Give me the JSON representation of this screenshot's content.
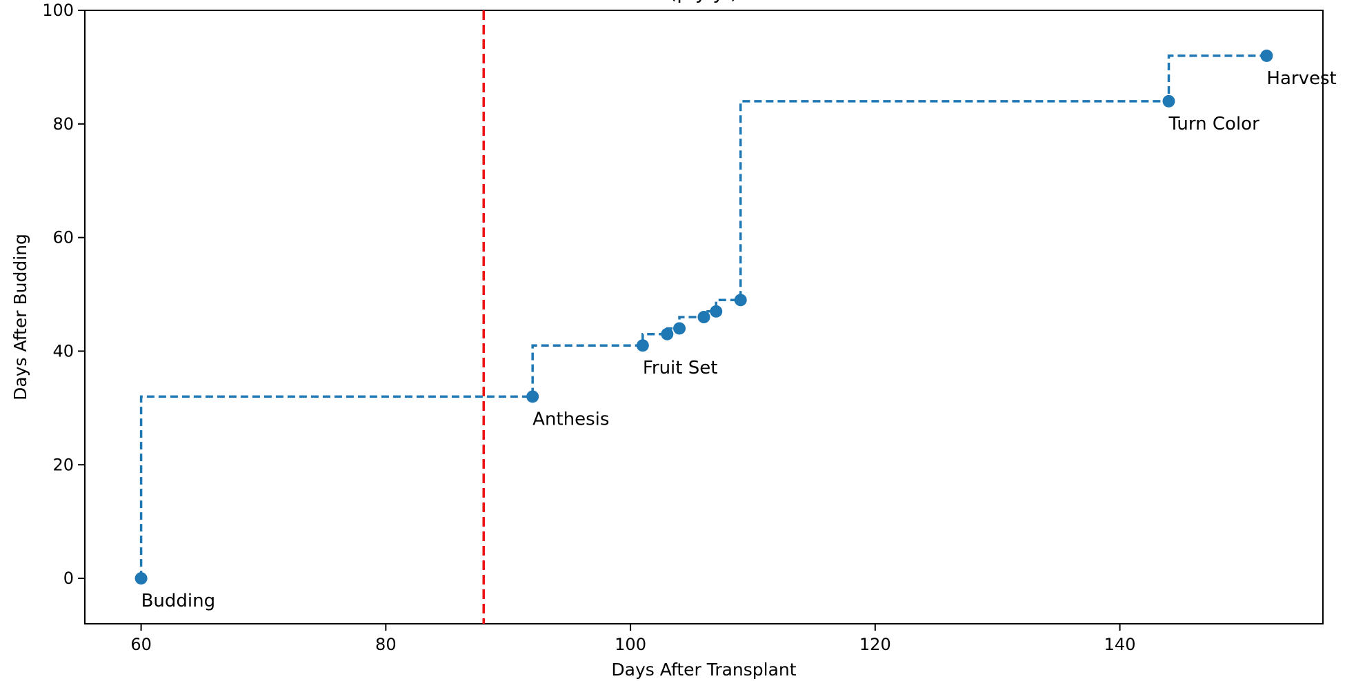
{
  "chart_data": {
    "type": "line",
    "x": [
      60,
      92,
      101,
      103,
      104,
      106,
      107,
      109,
      144,
      152
    ],
    "y": [
      0,
      32,
      41,
      43,
      44,
      46,
      47,
      49,
      84,
      92
    ],
    "point_labels": [
      {
        "index": 0,
        "text": "Budding"
      },
      {
        "index": 1,
        "text": "Anthesis"
      },
      {
        "index": 2,
        "text": "Fruit Set"
      },
      {
        "index": 8,
        "text": "Turn Color"
      },
      {
        "index": 9,
        "text": "Harvest"
      }
    ],
    "partial_top_text": "(p    y  y   )",
    "xlabel": "Days After Transplant",
    "ylabel": "Days After Budding",
    "xlim": [
      55.4,
      156.6
    ],
    "ylim": [
      -8,
      100
    ],
    "xticks": [
      60,
      80,
      100,
      120,
      140
    ],
    "yticks": [
      0,
      20,
      40,
      60,
      80,
      100
    ],
    "vline_x": 88,
    "grid": false,
    "colors": {
      "series": "#1f77b4",
      "vline": "#ee1111",
      "axis": "#000000"
    }
  }
}
